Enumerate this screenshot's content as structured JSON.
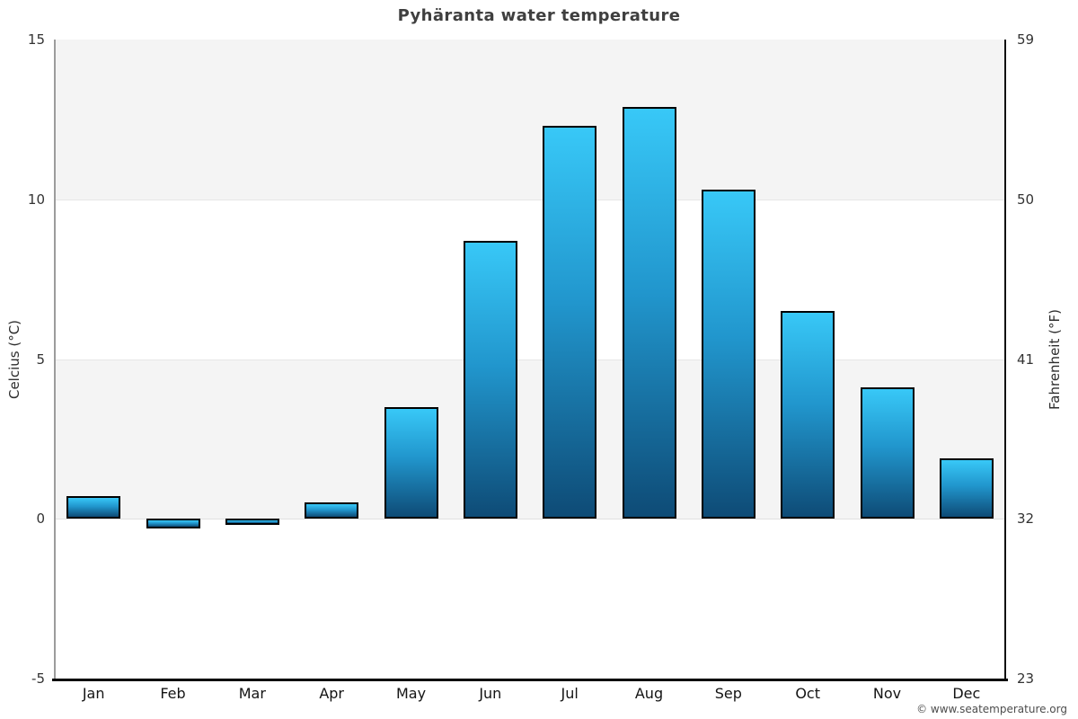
{
  "header": {
    "title": "Pyhäranta water temperature"
  },
  "footer": {
    "credit": "© www.seatemperature.org"
  },
  "chart_data": {
    "type": "bar",
    "title": "Pyhäranta water temperature",
    "categories": [
      "Jan",
      "Feb",
      "Mar",
      "Apr",
      "May",
      "Jun",
      "Jul",
      "Aug",
      "Sep",
      "Oct",
      "Nov",
      "Dec"
    ],
    "values": [
      0.7,
      -0.3,
      -0.2,
      0.5,
      3.5,
      8.7,
      12.3,
      12.9,
      10.3,
      6.5,
      4.1,
      1.9
    ],
    "xlabel": "",
    "ylabel_left": "Celcius (°C)",
    "ylabel_right": "Fahrenheit (°F)",
    "yticks_left": [
      15,
      10,
      5,
      0,
      -5
    ],
    "yticks_right": [
      59,
      50,
      41,
      32,
      23
    ],
    "ylim": [
      -5,
      15
    ],
    "grid": "alternating-horizontal-bands",
    "legend": "none",
    "colors": {
      "bar_gradient_top": "#38c8f7",
      "bar_gradient_bottom": "#0e4b76",
      "bar_border": "#000000",
      "band_shaded": "#f4f4f4",
      "band_plain": "#ffffff",
      "left_axis_line": "#9c9c9c",
      "right_axis_line": "#111111",
      "bottom_axis_line": "#0a0a0a",
      "title_text": "#3f3f3f",
      "tick_text": "#333333"
    }
  }
}
